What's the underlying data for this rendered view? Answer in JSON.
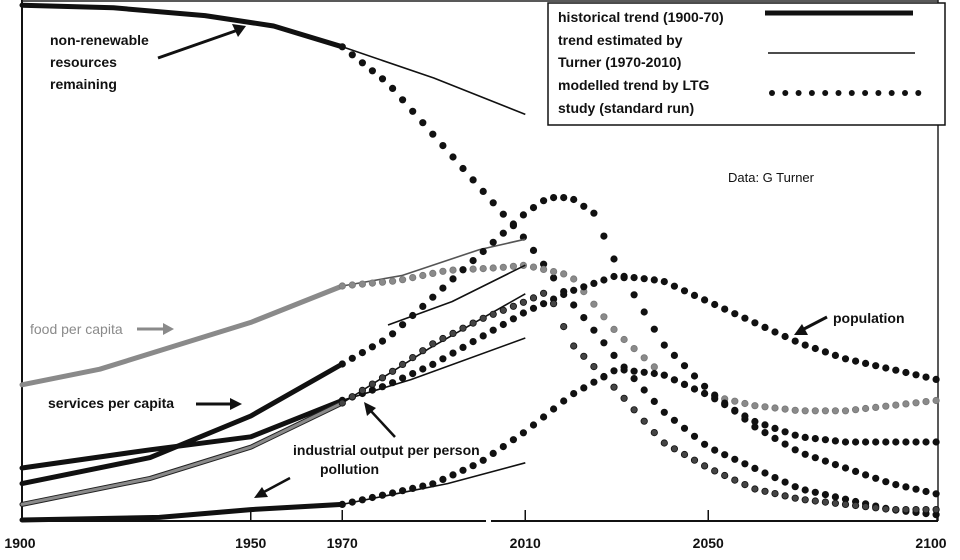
{
  "chart_data": {
    "type": "line",
    "title": "",
    "xlabel": "",
    "ylabel": "",
    "xlim": [
      1900,
      2100
    ],
    "ylim": [
      0,
      100
    ],
    "x_ticks": [
      "1900",
      "1950",
      "1970",
      "2010",
      "2050",
      "2100"
    ],
    "grid": false,
    "legend_position": "top-right",
    "legend": [
      {
        "label": "historical trend (1900-70)",
        "style": "thick-solid"
      },
      {
        "label_line1": "trend estimated by",
        "label_line2": "Turner (1970-2010)",
        "style": "thin-solid"
      },
      {
        "label_line1": "modelled trend by LTG",
        "label_line2": "study (standard run)",
        "style": "dotted"
      }
    ],
    "source_note": "Data: G Turner",
    "colors": {
      "black": "#111111",
      "gray": "#8a8a8a",
      "industrial": "#5a5a5a"
    },
    "series": [
      {
        "name": "non-renewable resources remaining",
        "label_lines": [
          "non-renewable",
          "resources",
          "remaining"
        ],
        "color": "#111111",
        "historical": [
          [
            1900,
            99
          ],
          [
            1920,
            98.5
          ],
          [
            1940,
            97
          ],
          [
            1955,
            95
          ],
          [
            1970,
            91
          ]
        ],
        "turner": [
          [
            1970,
            91
          ],
          [
            1990,
            85
          ],
          [
            2010,
            78
          ]
        ],
        "ltg": [
          [
            1970,
            91
          ],
          [
            1980,
            84
          ],
          [
            1990,
            74
          ],
          [
            2000,
            64
          ],
          [
            2010,
            54
          ],
          [
            2020,
            42
          ],
          [
            2030,
            31
          ],
          [
            2040,
            21
          ],
          [
            2050,
            14
          ],
          [
            2060,
            10
          ],
          [
            2070,
            6
          ],
          [
            2080,
            4
          ],
          [
            2090,
            2
          ],
          [
            2100,
            1
          ]
        ]
      },
      {
        "name": "food per capita",
        "label_lines": [
          "food per capita"
        ],
        "color": "#8a8a8a",
        "historical": [
          [
            1900,
            26
          ],
          [
            1917,
            29
          ],
          [
            1950,
            38
          ],
          [
            1970,
            45
          ]
        ],
        "turner": [
          [
            1970,
            45
          ],
          [
            1983,
            47
          ],
          [
            2000,
            52
          ],
          [
            2010,
            54
          ]
        ],
        "ltg": [
          [
            1970,
            45
          ],
          [
            1982,
            46
          ],
          [
            1993,
            48
          ],
          [
            2004,
            48.5
          ],
          [
            2010,
            49
          ],
          [
            2020,
            47
          ],
          [
            2030,
            36
          ],
          [
            2040,
            28
          ],
          [
            2050,
            24
          ],
          [
            2060,
            22
          ],
          [
            2070,
            21
          ],
          [
            2080,
            21
          ],
          [
            2090,
            22
          ],
          [
            2100,
            23
          ]
        ]
      },
      {
        "name": "services per capita",
        "label_lines": [
          "services per capita"
        ],
        "color": "#111111",
        "historical": [
          [
            1900,
            7
          ],
          [
            1928,
            12
          ],
          [
            1950,
            20
          ],
          [
            1970,
            30
          ]
        ],
        "turner": [
          [
            1980,
            37.5
          ],
          [
            1994,
            42
          ],
          [
            2010,
            49
          ]
        ],
        "ltg": [
          [
            1970,
            30
          ],
          [
            1980,
            35
          ],
          [
            1990,
            43
          ],
          [
            2000,
            51
          ],
          [
            2010,
            59
          ],
          [
            2015,
            62
          ],
          [
            2020,
            62
          ],
          [
            2025,
            59
          ],
          [
            2030,
            49
          ],
          [
            2040,
            34
          ],
          [
            2050,
            25
          ],
          [
            2060,
            18
          ],
          [
            2070,
            13
          ],
          [
            2080,
            10
          ],
          [
            2090,
            7
          ],
          [
            2100,
            5
          ]
        ]
      },
      {
        "name": "population",
        "label_lines": [
          "population"
        ],
        "color": "#111111",
        "historical": [
          [
            1900,
            10
          ],
          [
            1928,
            13.5
          ],
          [
            1950,
            16
          ],
          [
            1970,
            23
          ]
        ],
        "turner": [
          [
            1970,
            23
          ],
          [
            1985,
            27
          ],
          [
            2010,
            35
          ]
        ],
        "ltg": [
          [
            1970,
            23
          ],
          [
            1980,
            26
          ],
          [
            1990,
            30
          ],
          [
            2000,
            35
          ],
          [
            2010,
            40
          ],
          [
            2020,
            44
          ],
          [
            2030,
            47
          ],
          [
            2040,
            46
          ],
          [
            2050,
            42
          ],
          [
            2060,
            38
          ],
          [
            2070,
            34
          ],
          [
            2080,
            31
          ],
          [
            2090,
            29
          ],
          [
            2100,
            27
          ]
        ]
      },
      {
        "name": "industrial output per person",
        "label_lines": [
          "industrial output per person"
        ],
        "color": "#5a5a5a",
        "historical": [
          [
            1900,
            3
          ],
          [
            1928,
            8
          ],
          [
            1950,
            14
          ],
          [
            1970,
            22.5
          ]
        ],
        "turner": [
          [
            1970,
            22.5
          ],
          [
            1989,
            33
          ],
          [
            2010,
            43.5
          ]
        ],
        "ltg": [
          [
            1970,
            22.5
          ],
          [
            1980,
            28
          ],
          [
            1990,
            34
          ],
          [
            2000,
            38.5
          ],
          [
            2010,
            42
          ],
          [
            2015,
            44
          ],
          [
            2020,
            34
          ],
          [
            2030,
            25
          ],
          [
            2040,
            15
          ],
          [
            2050,
            10
          ],
          [
            2060,
            6
          ],
          [
            2070,
            4
          ],
          [
            2080,
            3
          ],
          [
            2090,
            2
          ],
          [
            2100,
            2
          ]
        ]
      },
      {
        "name": "pollution",
        "label_lines": [
          "pollution"
        ],
        "color": "#111111",
        "historical": [
          [
            1900,
            0
          ],
          [
            1930,
            0.5
          ],
          [
            1950,
            2
          ],
          [
            1970,
            3
          ]
        ],
        "turner": [
          [
            1970,
            3
          ],
          [
            1993,
            7
          ],
          [
            2010,
            11
          ]
        ],
        "ltg": [
          [
            1970,
            3
          ],
          [
            1980,
            5
          ],
          [
            1990,
            7
          ],
          [
            2000,
            11
          ],
          [
            2010,
            17
          ],
          [
            2020,
            24
          ],
          [
            2030,
            29
          ],
          [
            2040,
            28
          ],
          [
            2050,
            24
          ],
          [
            2060,
            19
          ],
          [
            2070,
            16
          ],
          [
            2080,
            15
          ],
          [
            2090,
            15
          ],
          [
            2100,
            15
          ]
        ]
      }
    ]
  }
}
